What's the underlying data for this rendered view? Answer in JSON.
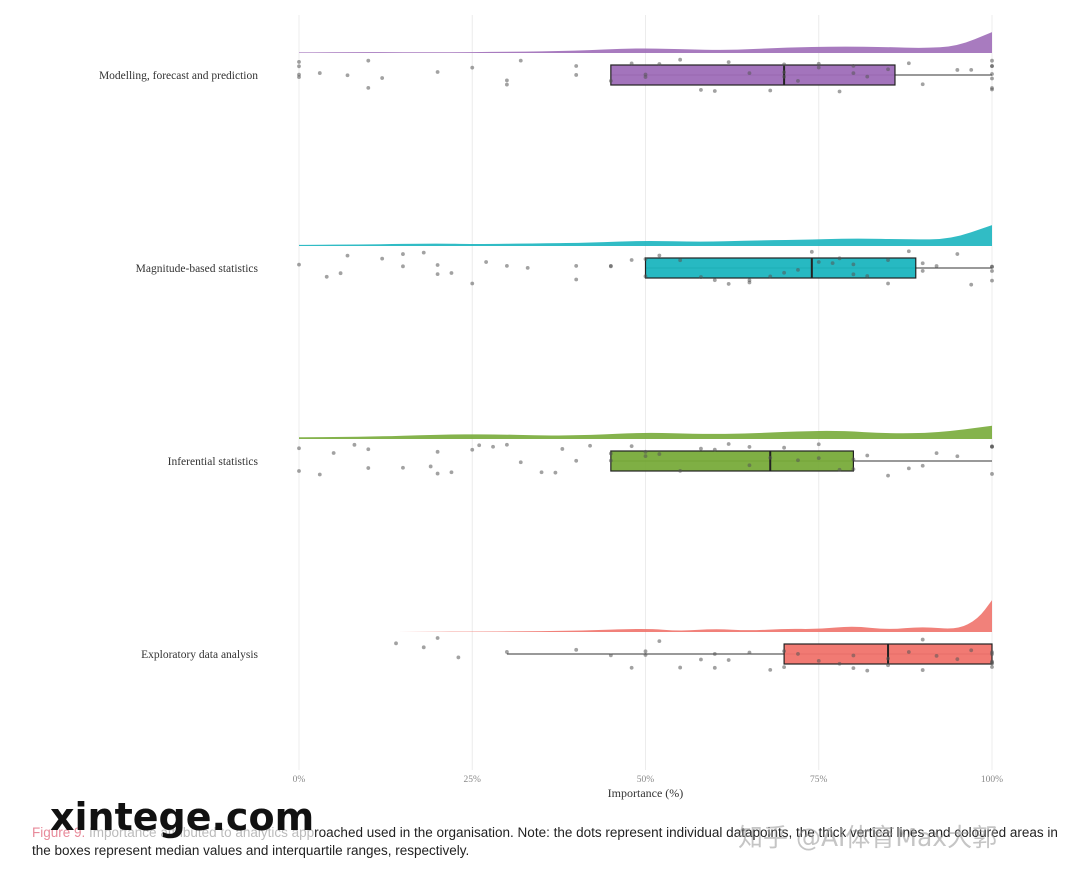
{
  "chart_data": {
    "type": "raincloud",
    "xlabel": "Importance (%)",
    "x_ticks": [
      "0%",
      "25%",
      "50%",
      "75%",
      "100%"
    ],
    "xlim": [
      0,
      100
    ],
    "grid": "vertical",
    "categories": [
      {
        "name": "Modelling, forecast and prediction",
        "color": "#9e6db8",
        "box": {
          "q1": 45,
          "median": 70,
          "q3": 86,
          "whisker_low": 45,
          "whisker_high": 100
        },
        "density": [
          [
            0,
            0.03
          ],
          [
            10,
            0.04
          ],
          [
            20,
            0.03
          ],
          [
            30,
            0.05
          ],
          [
            40,
            0.1
          ],
          [
            48,
            0.22
          ],
          [
            55,
            0.18
          ],
          [
            62,
            0.12
          ],
          [
            70,
            0.25
          ],
          [
            78,
            0.3
          ],
          [
            85,
            0.27
          ],
          [
            90,
            0.22
          ],
          [
            95,
            0.3
          ],
          [
            100,
            0.95
          ]
        ],
        "points": [
          0,
          0,
          0,
          0,
          3,
          7,
          10,
          10,
          12,
          20,
          25,
          30,
          30,
          32,
          40,
          40,
          45,
          48,
          50,
          50,
          52,
          55,
          58,
          60,
          62,
          65,
          68,
          70,
          70,
          70,
          72,
          75,
          75,
          78,
          80,
          80,
          82,
          85,
          88,
          90,
          95,
          97,
          100,
          100,
          100,
          100,
          100,
          100,
          100
        ]
      },
      {
        "name": "Magnitude-based statistics",
        "color": "#1bb5bf",
        "box": {
          "q1": 50,
          "median": 74,
          "q3": 89,
          "whisker_low": 50,
          "whisker_high": 100
        },
        "density": [
          [
            0,
            0.05
          ],
          [
            10,
            0.07
          ],
          [
            20,
            0.12
          ],
          [
            25,
            0.08
          ],
          [
            35,
            0.12
          ],
          [
            42,
            0.15
          ],
          [
            50,
            0.25
          ],
          [
            58,
            0.18
          ],
          [
            65,
            0.25
          ],
          [
            72,
            0.28
          ],
          [
            80,
            0.35
          ],
          [
            88,
            0.3
          ],
          [
            94,
            0.3
          ],
          [
            100,
            0.95
          ]
        ],
        "points": [
          0,
          4,
          6,
          7,
          12,
          15,
          15,
          18,
          20,
          20,
          22,
          25,
          27,
          30,
          33,
          40,
          40,
          45,
          45,
          48,
          50,
          50,
          52,
          55,
          58,
          60,
          62,
          65,
          65,
          68,
          70,
          72,
          74,
          75,
          77,
          78,
          80,
          80,
          82,
          85,
          85,
          88,
          90,
          90,
          92,
          95,
          97,
          100,
          100,
          100,
          100
        ]
      },
      {
        "name": "Inferential statistics",
        "color": "#78ab3a",
        "box": {
          "q1": 45,
          "median": 68,
          "q3": 80,
          "whisker_low": 45,
          "whisker_high": 100
        },
        "density": [
          [
            0,
            0.08
          ],
          [
            10,
            0.1
          ],
          [
            20,
            0.2
          ],
          [
            28,
            0.22
          ],
          [
            35,
            0.15
          ],
          [
            42,
            0.18
          ],
          [
            50,
            0.3
          ],
          [
            58,
            0.22
          ],
          [
            65,
            0.25
          ],
          [
            72,
            0.35
          ],
          [
            78,
            0.38
          ],
          [
            85,
            0.25
          ],
          [
            92,
            0.28
          ],
          [
            100,
            0.6
          ]
        ],
        "points": [
          0,
          0,
          3,
          5,
          8,
          10,
          10,
          15,
          19,
          20,
          20,
          22,
          25,
          26,
          28,
          30,
          32,
          35,
          37,
          38,
          40,
          42,
          45,
          45,
          48,
          50,
          50,
          52,
          55,
          58,
          60,
          62,
          65,
          65,
          68,
          70,
          72,
          75,
          75,
          78,
          80,
          80,
          82,
          85,
          88,
          90,
          92,
          95,
          100,
          100,
          100,
          100
        ]
      },
      {
        "name": "Exploratory data analysis",
        "color": "#f0736b",
        "box": {
          "q1": 70,
          "median": 85,
          "q3": 100,
          "whisker_low": 30,
          "whisker_high": 100
        },
        "density": [
          [
            14,
            0.0
          ],
          [
            30,
            0.03
          ],
          [
            40,
            0.05
          ],
          [
            50,
            0.17
          ],
          [
            55,
            0.04
          ],
          [
            60,
            0.15
          ],
          [
            65,
            0.06
          ],
          [
            70,
            0.15
          ],
          [
            75,
            0.13
          ],
          [
            80,
            0.28
          ],
          [
            85,
            0.1
          ],
          [
            90,
            0.25
          ],
          [
            95,
            0.1
          ],
          [
            98,
            0.6
          ],
          [
            100,
            1.45
          ]
        ],
        "points": [
          14,
          18,
          20,
          23,
          30,
          40,
          45,
          48,
          50,
          50,
          52,
          55,
          58,
          60,
          60,
          62,
          65,
          68,
          70,
          70,
          72,
          75,
          78,
          80,
          80,
          82,
          85,
          85,
          88,
          90,
          90,
          92,
          95,
          97,
          100,
          100,
          100,
          100,
          100,
          100
        ]
      }
    ]
  },
  "caption": {
    "figure_label": "Figure 9.",
    "faded_text": " Importance attributed to analytics app",
    "text": "roached used in the organisation. Note: the dots represent individual datapoints, the thick vertical lines and coloured areas in the boxes represent median values and interquartile ranges, respectively."
  },
  "watermarks": {
    "left": "xintege.com",
    "right": "知乎 @AI体育Max大郭"
  }
}
